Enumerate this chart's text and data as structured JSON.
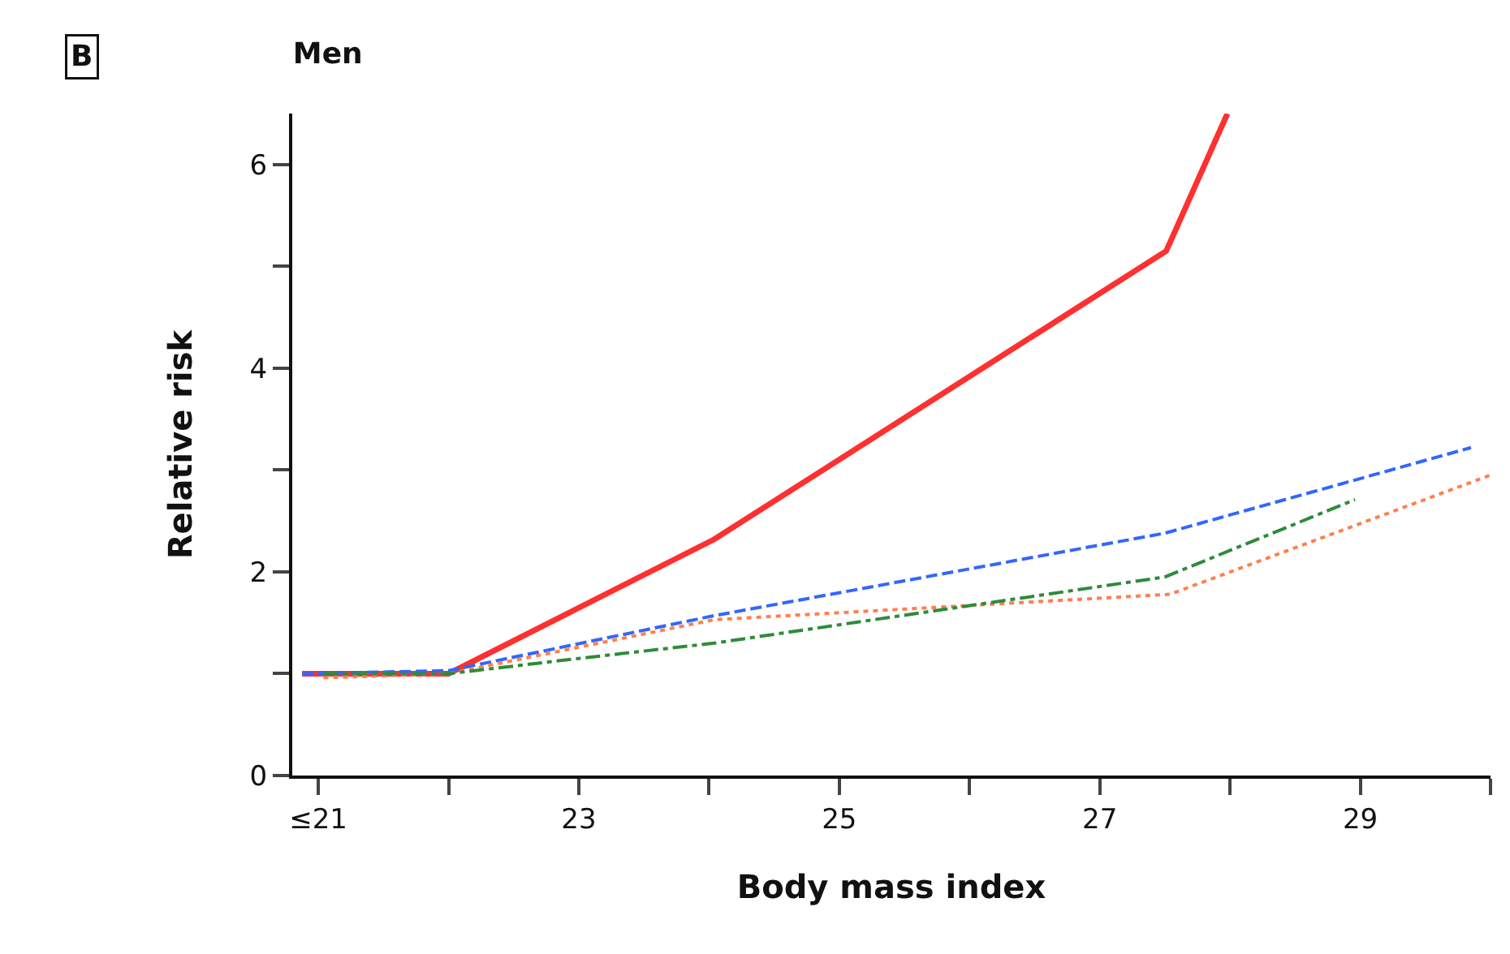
{
  "chart_data": {
    "type": "line",
    "title": "Men",
    "xlabel": "Body mass index",
    "ylabel": "Relative risk",
    "annotations": [
      "B"
    ],
    "series": [
      {
        "color": "#ff3030",
        "line_style": "solid",
        "x": [
          20.875,
          22,
          24.04,
          27.51,
          27.98
        ],
        "values": [
          1.0,
          1.0,
          2.32,
          5.15,
          6.5
        ]
      },
      {
        "color": "#3366ff",
        "line_style": "dashed",
        "x": [
          20.875,
          22,
          24.04,
          27.5,
          29.85
        ],
        "values": [
          1.0,
          1.03,
          1.57,
          2.38,
          3.22
        ]
      },
      {
        "color": "#ff7f50",
        "line_style": "dotted",
        "x": [
          21.04,
          22,
          24.04,
          27.54,
          30
        ],
        "values": [
          0.96,
          1.0,
          1.53,
          1.78,
          2.95
        ]
      },
      {
        "color": "#2e8b3a",
        "line_style": "dashdot",
        "x": [
          21.04,
          22,
          23,
          24.04,
          27.5,
          28.96
        ],
        "values": [
          1.0,
          1.0,
          1.15,
          1.3,
          1.95,
          2.71
        ]
      }
    ],
    "xlim": [
      20.8,
      30
    ],
    "ylim": [
      0,
      6.5
    ],
    "xticks": [
      {
        "value": 21,
        "label": "≤21"
      },
      {
        "value": 22,
        "label": null
      },
      23,
      {
        "value": 24,
        "label": null
      },
      25,
      {
        "value": 26,
        "label": null
      },
      27,
      {
        "value": 28,
        "label": null
      },
      29,
      {
        "value": 30,
        "label": null
      }
    ],
    "yticks": [
      0,
      {
        "value": 1,
        "label": null
      },
      2,
      {
        "value": 3,
        "label": null
      },
      4,
      {
        "value": 5,
        "label": null
      },
      6
    ],
    "marker": "none"
  }
}
